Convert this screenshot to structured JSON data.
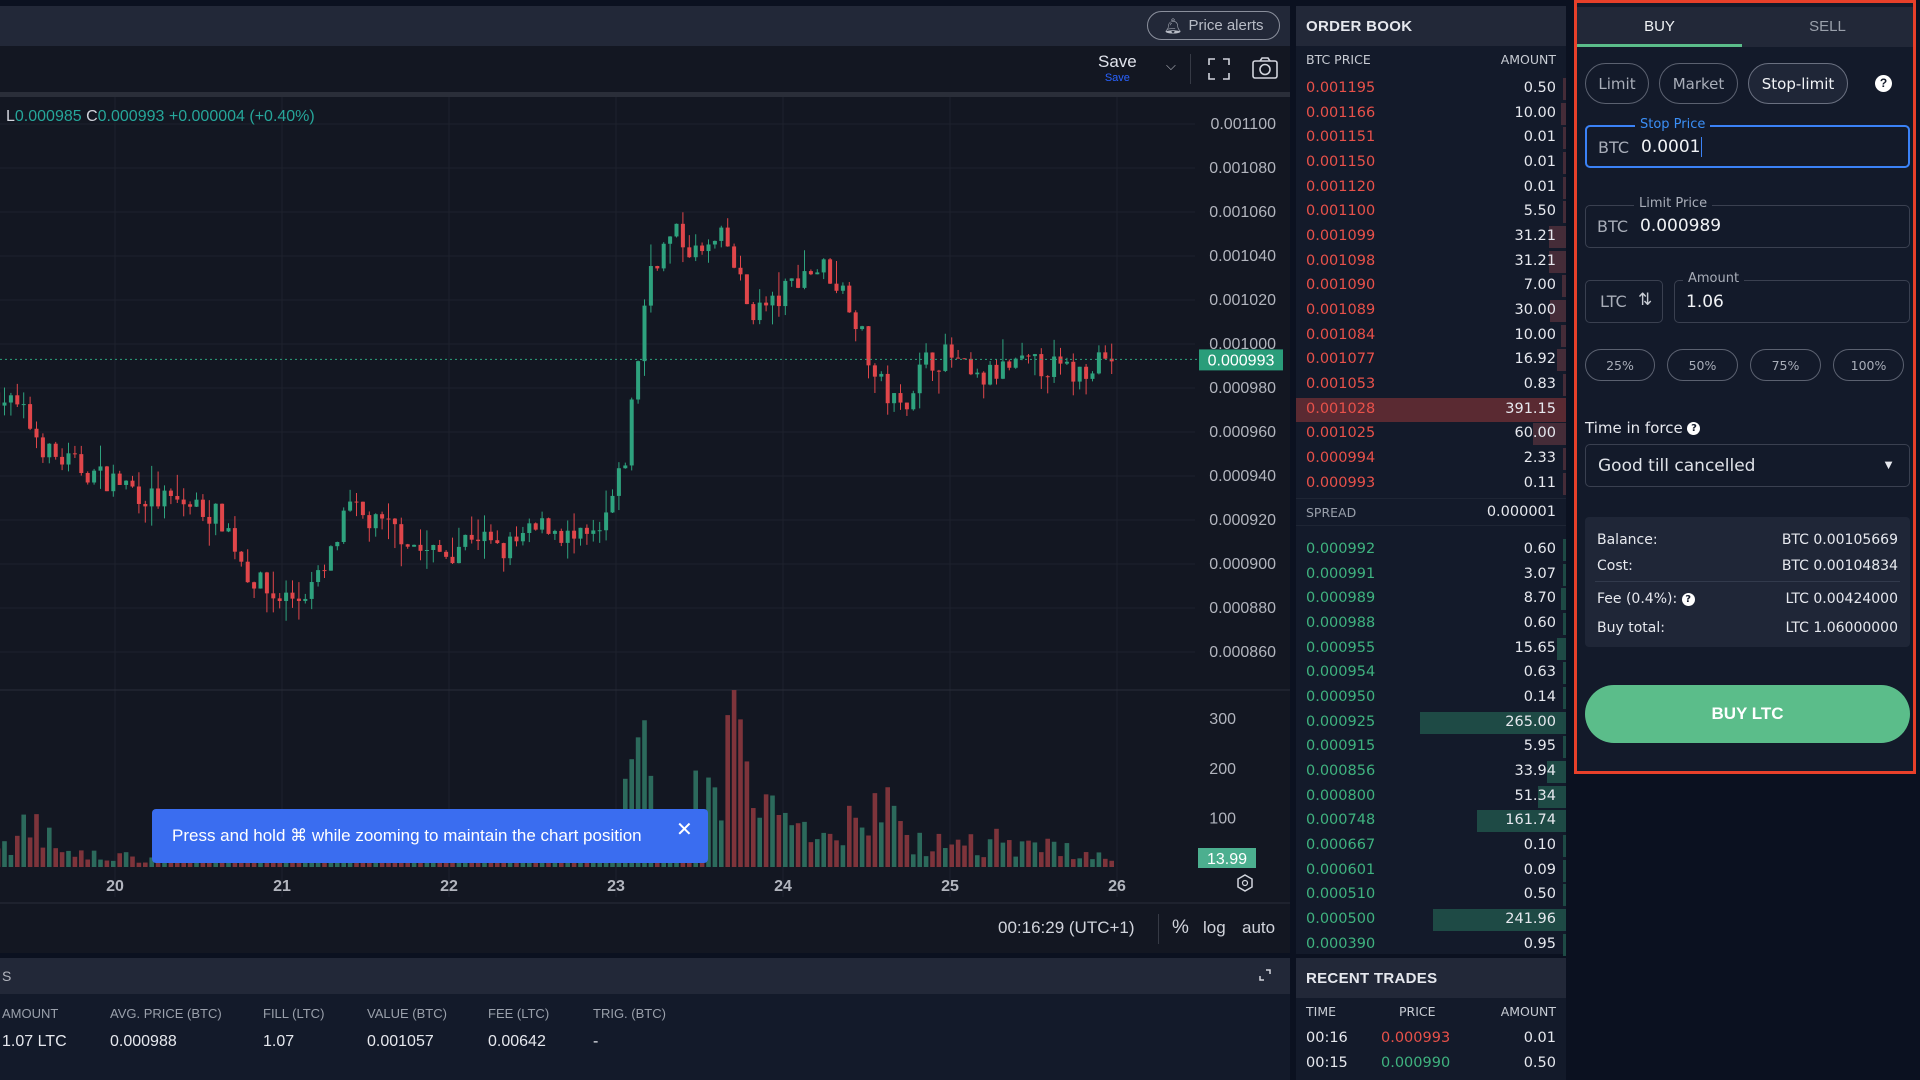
{
  "header": {
    "price_alerts_label": "Price alerts",
    "price_alerts_icon": "bell-icon"
  },
  "toolbar": {
    "save_label": "Save",
    "save_sublabel": "Save",
    "fullscreen_icon": "fullscreen-icon",
    "camera_icon": "camera-icon"
  },
  "legend": {
    "low_key": "L",
    "low_value": "0.000985",
    "close_key": "C",
    "close_value": "0.000993",
    "change": "+0.000004 (+0.40%)"
  },
  "toast": {
    "message": "Press and hold ⌘ while zooming to maintain the chart position",
    "close_icon": "close-icon"
  },
  "chart_footer": {
    "time": "00:16:29 (UTC+1)",
    "percent": "%",
    "log": "log",
    "auto": "auto"
  },
  "chart_data": {
    "type": "candlestick",
    "price_ticks": [
      "0.001100",
      "0.001080",
      "0.001060",
      "0.001040",
      "0.001020",
      "0.001000",
      "0.000980",
      "0.000960",
      "0.000940",
      "0.000920",
      "0.000900",
      "0.000880",
      "0.000860"
    ],
    "ylim": [
      0.000848,
      0.001113
    ],
    "volume_ticks": [
      "300",
      "200",
      "100"
    ],
    "date_ticks": [
      "20",
      "21",
      "22",
      "23",
      "24",
      "25",
      "26"
    ],
    "last_price_label": "0.000993",
    "last_price": 0.000993,
    "last_volume_label": "13.99",
    "close_samples": [
      [
        19.3,
        0.000978
      ],
      [
        19.45,
        0.000968
      ],
      [
        19.6,
        0.00095
      ],
      [
        19.75,
        0.000945
      ],
      [
        19.9,
        0.00094
      ],
      [
        20.05,
        0.000937
      ],
      [
        20.2,
        0.00093
      ],
      [
        20.35,
        0.000928
      ],
      [
        20.5,
        0.000926
      ],
      [
        20.65,
        0.00092
      ],
      [
        20.8,
        0.000895
      ],
      [
        20.95,
        0.000885
      ],
      [
        21.1,
        0.000885
      ],
      [
        21.25,
        0.000895
      ],
      [
        21.4,
        0.000925
      ],
      [
        21.55,
        0.000918
      ],
      [
        21.7,
        0.000915
      ],
      [
        21.85,
        0.000905
      ],
      [
        22.0,
        0.000905
      ],
      [
        22.15,
        0.000915
      ],
      [
        22.3,
        0.000905
      ],
      [
        22.45,
        0.000912
      ],
      [
        22.6,
        0.000918
      ],
      [
        22.75,
        0.00091
      ],
      [
        22.9,
        0.000912
      ],
      [
        23.05,
        0.000945
      ],
      [
        23.2,
        0.001035
      ],
      [
        23.35,
        0.00105
      ],
      [
        23.5,
        0.00104
      ],
      [
        23.65,
        0.001048
      ],
      [
        23.8,
        0.001015
      ],
      [
        23.95,
        0.001018
      ],
      [
        24.1,
        0.001032
      ],
      [
        24.25,
        0.001035
      ],
      [
        24.4,
        0.00102
      ],
      [
        24.55,
        0.000985
      ],
      [
        24.7,
        0.00097
      ],
      [
        24.85,
        0.000992
      ],
      [
        25.0,
        0.000995
      ],
      [
        25.15,
        0.000982
      ],
      [
        25.3,
        0.000988
      ],
      [
        25.45,
        0.00099
      ],
      [
        25.6,
        0.00099
      ],
      [
        25.75,
        0.000986
      ],
      [
        25.9,
        0.000995
      ],
      [
        26.0,
        0.000993
      ]
    ],
    "volume_samples": [
      [
        19.3,
        40
      ],
      [
        19.5,
        90
      ],
      [
        19.7,
        30
      ],
      [
        20.0,
        20
      ],
      [
        20.3,
        25
      ],
      [
        20.6,
        30
      ],
      [
        21.0,
        40
      ],
      [
        21.3,
        70
      ],
      [
        21.6,
        35
      ],
      [
        22.0,
        30
      ],
      [
        22.4,
        35
      ],
      [
        22.8,
        40
      ],
      [
        23.0,
        60
      ],
      [
        23.1,
        280
      ],
      [
        23.3,
        90
      ],
      [
        23.5,
        140
      ],
      [
        23.7,
        320
      ],
      [
        23.9,
        110
      ],
      [
        24.1,
        80
      ],
      [
        24.3,
        60
      ],
      [
        24.5,
        120
      ],
      [
        24.6,
        140
      ],
      [
        24.8,
        60
      ],
      [
        25.0,
        50
      ],
      [
        25.3,
        55
      ],
      [
        25.6,
        45
      ],
      [
        26.0,
        15
      ]
    ],
    "colors": {
      "up": "#2ea27e",
      "down": "#e0464a",
      "up_volume": "#2c6a5c",
      "down_volume": "#7e343b"
    }
  },
  "orders": {
    "title_fragment": "S",
    "expand_icon": "expand-icon",
    "columns": [
      "AMOUNT",
      "AVG. PRICE (BTC)",
      "FILL (LTC)",
      "VALUE (BTC)",
      "FEE (LTC)",
      "TRIG. (BTC)"
    ],
    "rows": [
      [
        "1.07 LTC",
        "0.000988",
        "1.07",
        "0.001057",
        "0.00642",
        "-"
      ]
    ]
  },
  "order_book": {
    "title": "ORDER BOOK",
    "price_header": "BTC PRICE",
    "amount_header": "AMOUNT",
    "depth_max": 400,
    "asks": [
      [
        "0.001195",
        "0.50"
      ],
      [
        "0.001166",
        "10.00"
      ],
      [
        "0.001151",
        "0.01"
      ],
      [
        "0.001150",
        "0.01"
      ],
      [
        "0.001120",
        "0.01"
      ],
      [
        "0.001100",
        "5.50"
      ],
      [
        "0.001099",
        "31.21"
      ],
      [
        "0.001098",
        "31.21"
      ],
      [
        "0.001090",
        "7.00"
      ],
      [
        "0.001089",
        "30.00"
      ],
      [
        "0.001084",
        "10.00"
      ],
      [
        "0.001077",
        "16.92"
      ],
      [
        "0.001053",
        "0.83"
      ],
      [
        "0.001028",
        "391.15"
      ],
      [
        "0.001025",
        "60.00"
      ],
      [
        "0.000994",
        "2.33"
      ],
      [
        "0.000993",
        "0.11"
      ]
    ],
    "highlighted_ask": "0.001028",
    "spread_label": "SPREAD",
    "spread_value": "0.000001",
    "bids": [
      [
        "0.000992",
        "0.60"
      ],
      [
        "0.000991",
        "3.07"
      ],
      [
        "0.000989",
        "8.70"
      ],
      [
        "0.000988",
        "0.60"
      ],
      [
        "0.000955",
        "15.65"
      ],
      [
        "0.000954",
        "0.63"
      ],
      [
        "0.000950",
        "0.14"
      ],
      [
        "0.000925",
        "265.00"
      ],
      [
        "0.000915",
        "5.95"
      ],
      [
        "0.000856",
        "33.94"
      ],
      [
        "0.000800",
        "51.34"
      ],
      [
        "0.000748",
        "161.74"
      ],
      [
        "0.000667",
        "0.10"
      ],
      [
        "0.000601",
        "0.09"
      ],
      [
        "0.000510",
        "0.50"
      ],
      [
        "0.000500",
        "241.96"
      ],
      [
        "0.000390",
        "0.95"
      ]
    ],
    "colors": {
      "ask": "#e8514a",
      "bid": "#3fb27f"
    }
  },
  "recent_trades": {
    "title": "RECENT TRADES",
    "columns": [
      "TIME",
      "PRICE",
      "AMOUNT"
    ],
    "rows": [
      [
        "00:16",
        "0.000993",
        "0.01",
        "sell"
      ],
      [
        "00:15",
        "0.000990",
        "0.50",
        "buy"
      ]
    ]
  },
  "trade": {
    "tabs": [
      "BUY",
      "SELL"
    ],
    "active_tab": "BUY",
    "order_types": [
      "Limit",
      "Market",
      "Stop-limit"
    ],
    "active_order_type": "Stop-limit",
    "stop_price": {
      "label": "Stop Price",
      "currency": "BTC",
      "value": "0.0001"
    },
    "limit_price": {
      "label": "Limit Price",
      "currency": "BTC",
      "value": "0.000989"
    },
    "amount": {
      "label": "Amount",
      "currency": "LTC",
      "value": "1.06"
    },
    "percents": [
      "25%",
      "50%",
      "75%",
      "100%"
    ],
    "time_in_force": {
      "label": "Time in force",
      "value": "Good till cancelled"
    },
    "summary": {
      "balance_label": "Balance:",
      "balance_value": "BTC 0.00105669",
      "cost_label": "Cost:",
      "cost_value": "BTC 0.00104834",
      "fee_label": "Fee (0.4%):",
      "fee_value": "LTC 0.00424000",
      "total_label": "Buy total:",
      "total_value": "LTC 1.06000000"
    },
    "submit_label": "BUY LTC",
    "accent": "#5bbd8a",
    "highlight_border": "#e8402a"
  }
}
